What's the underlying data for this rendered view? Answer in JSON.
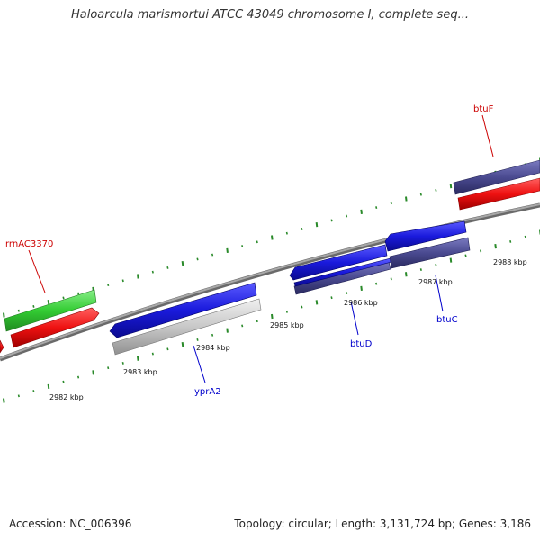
{
  "title": "Haloarcula marismortui ATCC 43049 chromosome I, complete seq...",
  "footer": {
    "accession": "Accession: NC_006396",
    "stats": "Topology: circular; Length: 3,131,724 bp; Genes: 3,186"
  },
  "colors": {
    "backbone": "#888888",
    "tick": "#2a8a2a",
    "forward_label": "#cc0000",
    "reverse_label": "#0000cc",
    "gene_blue": "#1a1adc",
    "gene_purple": "#4a4a90",
    "gene_red": "#ee1111",
    "gene_green": "#33cc33",
    "gene_gray": "#c8c8c8"
  },
  "scale_labels": [
    "2982 kbp",
    "2983 kbp",
    "2984 kbp",
    "2985 kbp",
    "2986 kbp",
    "2987 kbp",
    "2988 kbp"
  ],
  "gene_labels": {
    "btuF": "btuF",
    "rrnAC3370": "rrnAC3370",
    "yprA2": "yprA2",
    "btuD": "btuD",
    "btuC": "btuC"
  }
}
